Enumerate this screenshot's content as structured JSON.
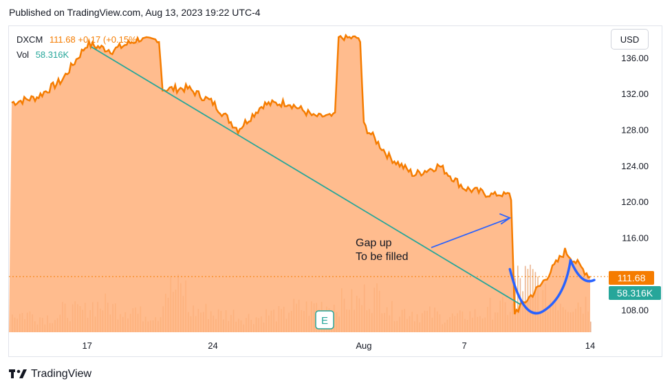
{
  "header": {
    "published": "Published on TradingView.com, Aug 13, 2023 19:22 UTC-4"
  },
  "legend": {
    "symbol": "DXCM",
    "price": "111.68",
    "change": "+0.17 (+0.15%)",
    "vol_label": "Vol",
    "vol_value": "58.316K"
  },
  "toolbar": {
    "currency": "USD"
  },
  "footer": {
    "brand": "TradingView"
  },
  "badges": {
    "price": "111.68",
    "volume": "58.316K",
    "earnings": "E"
  },
  "annotation": {
    "line1": "Gap up",
    "line2": "To be filled"
  },
  "colors": {
    "price_line": "#f57c00",
    "area_fill": "#ffb07a",
    "trendline": "#26a69a",
    "drawing": "#2962ff",
    "volume_badge": "#26a69a"
  },
  "chart_data": {
    "type": "area",
    "symbol": "DXCM",
    "y_axis": {
      "ticks": [
        108,
        112,
        116,
        120,
        124,
        128,
        132,
        136
      ],
      "tick_labels": [
        "108.00",
        "116.00",
        "120.00",
        "124.00",
        "128.00",
        "132.00",
        "136.00"
      ],
      "range": [
        105.5,
        139.5
      ]
    },
    "x_axis": {
      "labels": [
        "17",
        "24",
        "Aug",
        "7",
        "14"
      ]
    },
    "series": [
      {
        "values": [
          {
            "d": "Jul 12",
            "v": 131.0
          },
          {
            "d": "Jul 13",
            "v": 131.6
          },
          {
            "d": "Jul 14",
            "v": 133.5
          },
          {
            "d": "Jul 17",
            "v": 137.5
          },
          {
            "d": "Jul 18",
            "v": 136.8
          },
          {
            "d": "Jul 19",
            "v": 138.0
          },
          {
            "d": "Jul 20",
            "v": 132.5
          },
          {
            "d": "Jul 21",
            "v": 132.6
          },
          {
            "d": "Jul 24",
            "v": 131.0
          },
          {
            "d": "Jul 25",
            "v": 128.0
          },
          {
            "d": "Jul 26",
            "v": 130.8
          },
          {
            "d": "Jul 27",
            "v": 131.0
          },
          {
            "d": "Jul 28",
            "v": 129.5
          },
          {
            "d": "Jul 31",
            "v": 138.2
          },
          {
            "d": "Aug 1",
            "v": 128.5
          },
          {
            "d": "Aug 2",
            "v": 125.0
          },
          {
            "d": "Aug 3",
            "v": 123.0
          },
          {
            "d": "Aug 4",
            "v": 124.0
          },
          {
            "d": "Aug 7",
            "v": 121.5
          },
          {
            "d": "Aug 8",
            "v": 120.8
          },
          {
            "d": "Aug 9",
            "v": 107.7
          },
          {
            "d": "Aug 10",
            "v": 110.6
          },
          {
            "d": "Aug 11",
            "v": 114.5
          },
          {
            "d": "Aug 14",
            "v": 111.68
          }
        ]
      }
    ],
    "volume": [
      6,
      5,
      7,
      9,
      8,
      6,
      14,
      7,
      6,
      5,
      6,
      8,
      9,
      10,
      12,
      7,
      6,
      5,
      6,
      8,
      17,
      11,
      10,
      6
    ],
    "last_price": 111.68,
    "last_volume": "58.316K",
    "grid": false,
    "annotations": [
      "Gap up",
      "To be filled"
    ]
  }
}
